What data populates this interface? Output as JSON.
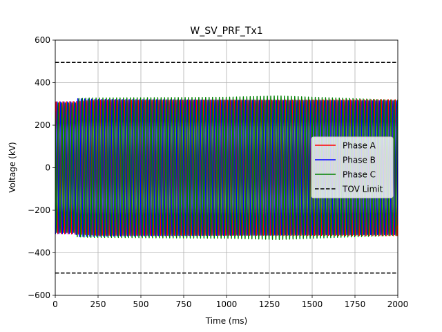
{
  "chart_data": {
    "type": "line",
    "title": "W_SV_PRF_Tx1",
    "xlabel": "Time (ms)",
    "ylabel": "Voltage (kV)",
    "xlim": [
      0,
      2000
    ],
    "ylim": [
      -600,
      600
    ],
    "xticks": [
      0,
      250,
      500,
      750,
      1000,
      1250,
      1500,
      1750,
      2000
    ],
    "yticks": [
      -600,
      -400,
      -200,
      0,
      200,
      400,
      600
    ],
    "xtick_labels": [
      "0",
      "250",
      "500",
      "750",
      "1000",
      "1250",
      "1500",
      "1750",
      "2000"
    ],
    "ytick_labels": [
      "−600",
      "−400",
      "−200",
      "0",
      "200",
      "400",
      "600"
    ],
    "grid": true,
    "legend_position": "center-right",
    "waveform": {
      "frequency_hz": 50,
      "nominal_peak_kv": 315
    },
    "series": [
      {
        "name": "Phase A",
        "color": "#ff0000",
        "style": "solid",
        "phase_deg": 0,
        "envelope": {
          "t": [
            0,
            125,
            250,
            1000,
            1300,
            2000
          ],
          "peak": [
            310,
            312,
            318,
            318,
            318,
            320
          ]
        }
      },
      {
        "name": "Phase B",
        "color": "#0000ff",
        "style": "solid",
        "phase_deg": -120,
        "envelope": {
          "t": [
            0,
            120,
            125,
            250,
            1000,
            2000
          ],
          "peak": [
            310,
            310,
            325,
            322,
            318,
            315
          ]
        }
      },
      {
        "name": "Phase C",
        "color": "#008000",
        "style": "solid",
        "phase_deg": 120,
        "envelope": {
          "t": [
            0,
            120,
            125,
            200,
            1000,
            1300,
            2000
          ],
          "peak": [
            305,
            305,
            325,
            328,
            332,
            338,
            318
          ]
        }
      },
      {
        "name": "TOV Limit",
        "color": "#000000",
        "style": "dashed",
        "values": [
          495,
          -495
        ]
      }
    ]
  }
}
